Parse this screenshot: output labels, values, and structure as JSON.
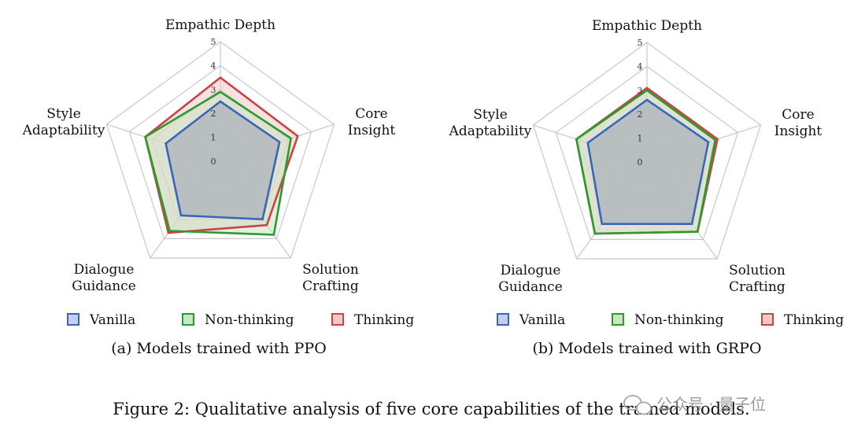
{
  "figure_caption": "Figure 2: Qualitative analysis of five core capabilities of the trained models.",
  "watermark": "公众号 · 量子位",
  "legend": [
    "Vanilla",
    "Non-thinking",
    "Thinking"
  ],
  "colors": {
    "Vanilla": {
      "stroke": "#3a66b8",
      "fill": "#c2d0ec"
    },
    "Non-thinking": {
      "stroke": "#2e9a2e",
      "fill": "#c9e6c2"
    },
    "Thinking": {
      "stroke": "#c74446",
      "fill": "#f0c9c8"
    },
    "grid": "#c8c8c8",
    "overlap": "#a8aaa6"
  },
  "chart_data": [
    {
      "type": "radar",
      "caption": "(a) Models trained with PPO",
      "axes": [
        "Empathic Depth",
        "Core Insight",
        "Solution Crafting",
        "Dialogue Guidance",
        "Style Adaptability"
      ],
      "axis_labels": [
        [
          "Empathic Depth"
        ],
        [
          "Core",
          "Insight"
        ],
        [
          "Solution",
          "Crafting"
        ],
        [
          "Dialogue",
          "Guidance"
        ],
        [
          "Style",
          "Adaptability"
        ]
      ],
      "rlim": [
        0,
        5
      ],
      "ticks": [
        0,
        1,
        2,
        3,
        4,
        5
      ],
      "series": [
        {
          "name": "Vanilla",
          "values": [
            2.5,
            2.6,
            3.0,
            2.8,
            2.4
          ]
        },
        {
          "name": "Non-thinking",
          "values": [
            2.9,
            3.1,
            3.8,
            3.6,
            3.3
          ]
        },
        {
          "name": "Thinking",
          "values": [
            3.5,
            3.4,
            3.3,
            3.7,
            3.3
          ]
        }
      ]
    },
    {
      "type": "radar",
      "caption": "(b) Models trained with GRPO",
      "axes": [
        "Empathic Depth",
        "Core Insight",
        "Solution Crafting",
        "Dialogue Guidance",
        "Style Adaptability"
      ],
      "axis_labels": [
        [
          "Empathic Depth"
        ],
        [
          "Core",
          "Insight"
        ],
        [
          "Solution",
          "Crafting"
        ],
        [
          "Dialogue",
          "Guidance"
        ],
        [
          "Style",
          "Adaptability"
        ]
      ],
      "rlim": [
        0,
        5
      ],
      "ticks": [
        0,
        1,
        2,
        3,
        4,
        5
      ],
      "series": [
        {
          "name": "Vanilla",
          "values": [
            2.6,
            2.7,
            3.2,
            3.2,
            2.6
          ]
        },
        {
          "name": "Non-thinking",
          "values": [
            3.0,
            3.0,
            3.6,
            3.7,
            3.1
          ]
        },
        {
          "name": "Thinking",
          "values": [
            3.1,
            3.1,
            3.6,
            3.7,
            3.1
          ]
        }
      ]
    }
  ]
}
